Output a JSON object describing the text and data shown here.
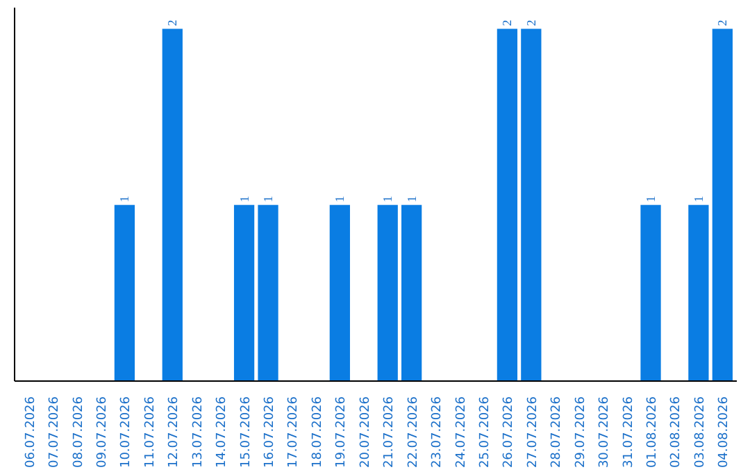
{
  "chart_data": {
    "type": "bar",
    "categories": [
      "06.07.2026",
      "07.07.2026",
      "08.07.2026",
      "09.07.2026",
      "10.07.2026",
      "11.07.2026",
      "12.07.2026",
      "13.07.2026",
      "14.07.2026",
      "15.07.2026",
      "16.07.2026",
      "17.07.2026",
      "18.07.2026",
      "19.07.2026",
      "20.07.2026",
      "21.07.2026",
      "22.07.2026",
      "23.07.2026",
      "24.07.2026",
      "25.07.2026",
      "26.07.2026",
      "27.07.2026",
      "28.07.2026",
      "29.07.2026",
      "30.07.2026",
      "31.07.2026",
      "01.08.2026",
      "02.08.2026",
      "03.08.2026",
      "04.08.2026"
    ],
    "values": [
      0,
      0,
      0,
      0,
      1,
      0,
      2,
      0,
      0,
      1,
      1,
      0,
      0,
      1,
      0,
      1,
      1,
      0,
      0,
      0,
      2,
      2,
      0,
      0,
      0,
      0,
      1,
      0,
      1,
      2
    ],
    "value_labels": [
      null,
      null,
      null,
      null,
      "1",
      null,
      "2",
      null,
      null,
      "1",
      "1",
      null,
      null,
      "1",
      null,
      "1",
      "1",
      null,
      null,
      null,
      "2",
      "2",
      null,
      null,
      null,
      null,
      "1",
      null,
      "1",
      "2"
    ],
    "color": "#0a7de3",
    "ylim": [
      0,
      2.12
    ],
    "tick_labels": "x",
    "grid": false
  }
}
